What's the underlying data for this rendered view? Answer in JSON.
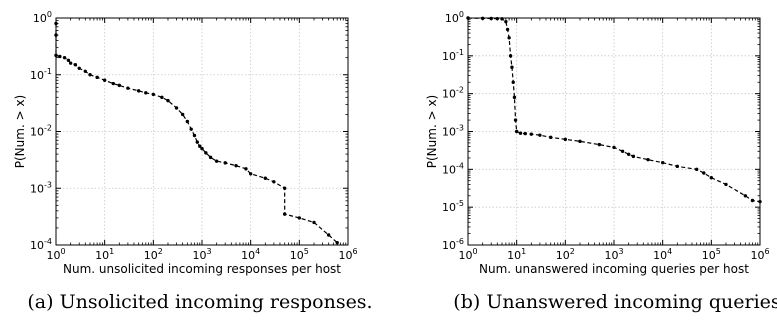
{
  "chart_data": [
    {
      "type": "line",
      "xscale": "log",
      "yscale": "log",
      "xlim": [
        1,
        1000000
      ],
      "ylim": [
        0.0001,
        1
      ],
      "xlabel": "Num. unsolicited incoming responses per host",
      "ylabel": "P(Num. > x)",
      "grid": true,
      "caption": "(a) Unsolicited incoming responses.",
      "x_ticks": [
        {
          "value": 1,
          "base": "10",
          "exp": "0"
        },
        {
          "value": 10,
          "base": "10",
          "exp": "1"
        },
        {
          "value": 100,
          "base": "10",
          "exp": "2"
        },
        {
          "value": 1000,
          "base": "10",
          "exp": "3"
        },
        {
          "value": 10000,
          "base": "10",
          "exp": "4"
        },
        {
          "value": 100000,
          "base": "10",
          "exp": "5"
        },
        {
          "value": 1000000,
          "base": "10",
          "exp": "6"
        }
      ],
      "y_ticks": [
        {
          "value": 1,
          "base": "10",
          "exp": "0"
        },
        {
          "value": 0.1,
          "base": "10",
          "exp": "-1"
        },
        {
          "value": 0.01,
          "base": "10",
          "exp": "-2"
        },
        {
          "value": 0.001,
          "base": "10",
          "exp": "-3"
        },
        {
          "value": 0.0001,
          "base": "10",
          "exp": "-4"
        }
      ],
      "series": [
        {
          "x": [
            1,
            1,
            1,
            1.2,
            1.5,
            1.8,
            2,
            2.5,
            3,
            4,
            5,
            7,
            10,
            15,
            20,
            30,
            50,
            70,
            100,
            150,
            200,
            300,
            400,
            500,
            600,
            700,
            800,
            900,
            1000,
            1200,
            1500,
            2000,
            3000,
            5000,
            8000,
            10000,
            20000,
            30000,
            50000,
            50000,
            100000,
            200000,
            400000,
            600000
          ],
          "y": [
            0.8,
            0.5,
            0.22,
            0.21,
            0.2,
            0.18,
            0.16,
            0.15,
            0.13,
            0.115,
            0.1,
            0.09,
            0.08,
            0.07,
            0.065,
            0.058,
            0.052,
            0.048,
            0.045,
            0.04,
            0.035,
            0.026,
            0.02,
            0.015,
            0.011,
            0.0085,
            0.0065,
            0.0055,
            0.005,
            0.0042,
            0.0035,
            0.003,
            0.0028,
            0.0025,
            0.0022,
            0.0018,
            0.0015,
            0.0013,
            0.001,
            0.00035,
            0.0003,
            0.00025,
            0.00015,
            0.00011
          ]
        }
      ]
    },
    {
      "type": "line",
      "xscale": "log",
      "yscale": "log",
      "xlim": [
        1,
        1000000
      ],
      "ylim": [
        1e-06,
        1
      ],
      "xlabel": "Num. unanswered incoming queries per host",
      "ylabel": "P(Num. > x)",
      "grid": true,
      "caption": "(b) Unanswered incoming queries.",
      "x_ticks": [
        {
          "value": 1,
          "base": "10",
          "exp": "0"
        },
        {
          "value": 10,
          "base": "10",
          "exp": "1"
        },
        {
          "value": 100,
          "base": "10",
          "exp": "2"
        },
        {
          "value": 1000,
          "base": "10",
          "exp": "3"
        },
        {
          "value": 10000,
          "base": "10",
          "exp": "4"
        },
        {
          "value": 100000,
          "base": "10",
          "exp": "5"
        },
        {
          "value": 1000000,
          "base": "10",
          "exp": "6"
        }
      ],
      "y_ticks": [
        {
          "value": 1,
          "base": "10",
          "exp": "0"
        },
        {
          "value": 0.1,
          "base": "10",
          "exp": "-1"
        },
        {
          "value": 0.01,
          "base": "10",
          "exp": "-2"
        },
        {
          "value": 0.001,
          "base": "10",
          "exp": "-3"
        },
        {
          "value": 0.0001,
          "base": "10",
          "exp": "-4"
        },
        {
          "value": 1e-05,
          "base": "10",
          "exp": "-5"
        },
        {
          "value": 1e-06,
          "base": "10",
          "exp": "-6"
        }
      ],
      "series": [
        {
          "x": [
            1,
            2,
            3,
            4,
            5,
            6,
            6.5,
            7,
            7.5,
            8,
            8.5,
            9,
            9.5,
            10,
            12,
            15,
            20,
            30,
            50,
            100,
            200,
            500,
            1000,
            1500,
            2000,
            2500,
            5000,
            10000,
            20000,
            50000,
            70000,
            100000,
            200000,
            500000,
            700000,
            1000000
          ],
          "y": [
            1,
            0.98,
            0.97,
            0.96,
            0.95,
            0.8,
            0.5,
            0.3,
            0.1,
            0.05,
            0.02,
            0.008,
            0.002,
            0.001,
            0.0009,
            0.00088,
            0.00085,
            0.0008,
            0.0007,
            0.00062,
            0.00055,
            0.00045,
            0.00038,
            0.0003,
            0.00025,
            0.00022,
            0.00018,
            0.00015,
            0.00012,
            0.0001,
            8e-05,
            6e-05,
            4e-05,
            2e-05,
            1.5e-05,
            1.4e-05
          ]
        }
      ]
    }
  ]
}
